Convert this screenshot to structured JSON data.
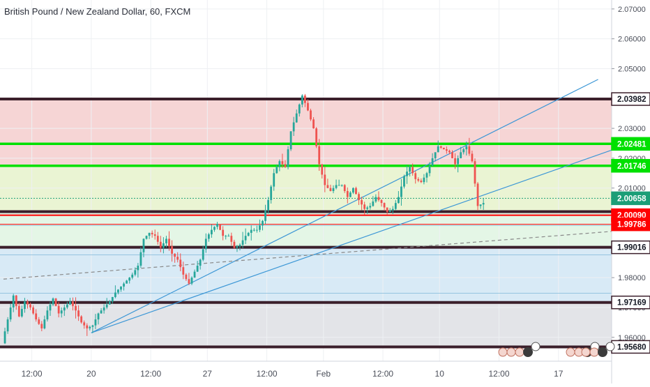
{
  "title": "British Pound / New Zealand Dollar, 60, FXCM",
  "chart_data": {
    "type": "candlestick",
    "title": "British Pound / New Zealand Dollar, 60, FXCM",
    "symbol": "GBPNZD",
    "interval": "60",
    "source": "FXCM",
    "ylim": [
      1.952,
      2.073
    ],
    "y_ticks": [
      {
        "value": 2.07,
        "label": "2.07000"
      },
      {
        "value": 2.06,
        "label": "2.06000"
      },
      {
        "value": 2.05,
        "label": "2.05000"
      },
      {
        "value": 2.03,
        "label": "2.03000"
      },
      {
        "value": 2.02,
        "label": "2.02000"
      },
      {
        "value": 2.01,
        "label": "2.01000"
      },
      {
        "value": 1.98,
        "label": "1.98000"
      },
      {
        "value": 1.97,
        "label": "1.97000"
      },
      {
        "value": 1.96,
        "label": "1.96000"
      }
    ],
    "x_ticks": [
      {
        "index": 10,
        "label": "12:00"
      },
      {
        "index": 31,
        "label": "20"
      },
      {
        "index": 52,
        "label": "12:00"
      },
      {
        "index": 72,
        "label": "27"
      },
      {
        "index": 93,
        "label": "12:00"
      },
      {
        "index": 113,
        "label": "Feb"
      },
      {
        "index": 134,
        "label": "12:00"
      },
      {
        "index": 154,
        "label": "10"
      },
      {
        "index": 175,
        "label": "12:00"
      },
      {
        "index": 196,
        "label": "17"
      }
    ],
    "levels": [
      {
        "value": 2.03982,
        "label": "2.03982",
        "kind": "resistance",
        "color": "#3b1f2b"
      },
      {
        "value": 2.02481,
        "label": "2.02481",
        "kind": "green",
        "color": "#00e000"
      },
      {
        "value": 2.01746,
        "label": "2.01746",
        "kind": "green",
        "color": "#00e000"
      },
      {
        "value": 2.00658,
        "label": "2.00658",
        "kind": "price",
        "color": "#1b9e77"
      },
      {
        "value": 2.0021,
        "label": "",
        "kind": "support",
        "color": "#3b1f2b"
      },
      {
        "value": 2.0009,
        "label": "2.00090",
        "kind": "red",
        "color": "#ff0000"
      },
      {
        "value": 1.99786,
        "label": "1.99786",
        "kind": "red",
        "color": "#ff0000"
      },
      {
        "value": 1.99016,
        "label": "1.99016",
        "kind": "support",
        "color": "#3b1f2b"
      },
      {
        "value": 1.97169,
        "label": "1.97169",
        "kind": "support",
        "color": "#3b1f2b"
      },
      {
        "value": 1.9568,
        "label": "1.95680",
        "kind": "support",
        "color": "#3b1f2b"
      }
    ],
    "zones": [
      {
        "from": 2.03982,
        "to": 2.0174,
        "color": "#f6d5d5"
      },
      {
        "from": 2.0174,
        "to": 2.0021,
        "color": "#eaf4d3"
      },
      {
        "from": 2.0021,
        "to": 1.99016,
        "color": "#e4f6e6"
      },
      {
        "from": 1.99016,
        "to": 1.97169,
        "color": "#d8eaf6"
      },
      {
        "from": 1.97169,
        "to": 1.9568,
        "color": "#e3e4e8"
      }
    ],
    "trendlines": [
      {
        "x1": 31,
        "y1": 1.9615,
        "x2": 210,
        "y2": 2.0464,
        "color": "#3c97d6",
        "dashed": false
      },
      {
        "x1": 31,
        "y1": 1.9615,
        "x2": 215,
        "y2": 2.0228,
        "color": "#3c97d6",
        "dashed": false
      },
      {
        "x1": 0,
        "y1": 1.9795,
        "x2": 215,
        "y2": 1.9955,
        "color": "#888888",
        "dashed": true
      }
    ],
    "ohlc_path": [
      [
        0,
        1.958
      ],
      [
        2,
        1.966
      ],
      [
        4,
        1.974
      ],
      [
        6,
        1.967
      ],
      [
        8,
        1.972
      ],
      [
        10,
        1.97
      ],
      [
        12,
        1.966
      ],
      [
        14,
        1.963
      ],
      [
        16,
        1.969
      ],
      [
        18,
        1.973
      ],
      [
        20,
        1.968
      ],
      [
        22,
        1.97
      ],
      [
        24,
        1.972
      ],
      [
        26,
        1.969
      ],
      [
        28,
        1.965
      ],
      [
        30,
        1.963
      ],
      [
        32,
        1.964
      ],
      [
        34,
        1.968
      ],
      [
        36,
        1.97
      ],
      [
        38,
        1.972
      ],
      [
        40,
        1.975
      ],
      [
        42,
        1.977
      ],
      [
        44,
        1.979
      ],
      [
        46,
        1.981
      ],
      [
        48,
        1.984
      ],
      [
        50,
        1.993
      ],
      [
        52,
        1.995
      ],
      [
        54,
        1.994
      ],
      [
        56,
        1.99
      ],
      [
        58,
        1.993
      ],
      [
        60,
        1.988
      ],
      [
        62,
        1.986
      ],
      [
        64,
        1.981
      ],
      [
        66,
        1.978
      ],
      [
        68,
        1.982
      ],
      [
        70,
        1.986
      ],
      [
        72,
        1.993
      ],
      [
        74,
        1.996
      ],
      [
        76,
        1.998
      ],
      [
        78,
        1.994
      ],
      [
        80,
        1.994
      ],
      [
        82,
        1.99
      ],
      [
        84,
        1.991
      ],
      [
        86,
        1.994
      ],
      [
        88,
        1.996
      ],
      [
        90,
        1.996
      ],
      [
        92,
        1.999
      ],
      [
        94,
        2.006
      ],
      [
        96,
        2.015
      ],
      [
        98,
        2.019
      ],
      [
        100,
        2.017
      ],
      [
        102,
        2.029
      ],
      [
        104,
        2.035
      ],
      [
        106,
        2.041
      ],
      [
        108,
        2.036
      ],
      [
        110,
        2.03
      ],
      [
        112,
        2.018
      ],
      [
        114,
        2.011
      ],
      [
        116,
        2.009
      ],
      [
        118,
        2.011
      ],
      [
        120,
        2.011
      ],
      [
        122,
        2.007
      ],
      [
        124,
        2.01
      ],
      [
        126,
        2.006
      ],
      [
        128,
        2.003
      ],
      [
        130,
        2.004
      ],
      [
        132,
        2.007
      ],
      [
        134,
        2.005
      ],
      [
        136,
        2.002
      ],
      [
        138,
        2.003
      ],
      [
        140,
        2.007
      ],
      [
        142,
        2.014
      ],
      [
        144,
        2.017
      ],
      [
        146,
        2.013
      ],
      [
        148,
        2.012
      ],
      [
        150,
        2.015
      ],
      [
        152,
        2.02
      ],
      [
        154,
        2.024
      ],
      [
        156,
        2.023
      ],
      [
        158,
        2.022
      ],
      [
        160,
        2.018
      ],
      [
        162,
        2.022
      ],
      [
        164,
        2.024
      ],
      [
        166,
        2.019
      ],
      [
        168,
        2.004
      ],
      [
        170,
        2.005
      ]
    ]
  }
}
